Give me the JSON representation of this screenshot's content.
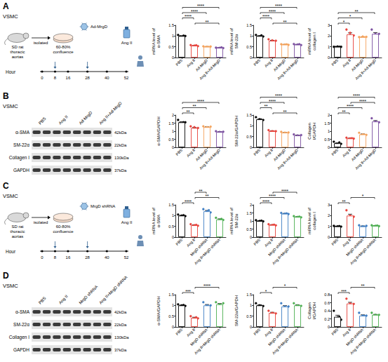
{
  "panels": [
    {
      "letter": "A",
      "cell": "VSMC",
      "schematic": {
        "source": "SD rat thoracic aortas",
        "step": "isolated",
        "confluence": "60-80% confluence",
        "treatment": "Ad-MrgD",
        "stimulus": "Ang II",
        "time_label": "Hour",
        "hours": [
          0,
          8,
          16,
          28,
          40,
          52
        ]
      }
    },
    {
      "letter": "B",
      "cell": "VSMC",
      "blot": {
        "columns": [
          "PBS",
          "Ang II",
          "Ad-MrgD",
          "Ang II+Ad-MrgD"
        ],
        "rows": [
          {
            "label": "α-SMA",
            "size": "42kDa"
          },
          {
            "label": "SM-22α",
            "size": "22kDa"
          },
          {
            "label": "Collagen I",
            "size": "130kDa"
          },
          {
            "label": "GAPDH",
            "size": "37kDa"
          }
        ]
      }
    },
    {
      "letter": "C",
      "cell": "VSMC",
      "schematic": {
        "source": "SD rat thoracic aortas",
        "step": "isolated",
        "confluence": "60-80% confluence",
        "treatment": "MrgD shRNA",
        "stimulus": "Ang II",
        "time_label": "Hour",
        "hours": [
          0,
          8,
          16,
          28,
          40,
          52
        ]
      }
    },
    {
      "letter": "D",
      "cell": "VSMC",
      "blot": {
        "columns": [
          "PBS",
          "Ang II",
          "MrgD shRNA",
          "Ang II+MrgD shRNA"
        ],
        "rows": [
          {
            "label": "α-SMA",
            "size": "42kDa"
          },
          {
            "label": "SM-22α",
            "size": "22kDa"
          },
          {
            "label": "Collagen I",
            "size": "130kDa"
          },
          {
            "label": "GAPDH",
            "size": "37kDa"
          }
        ]
      }
    }
  ],
  "chart_data": [
    {
      "type": "bar",
      "ylabel": "mRNA level of α-SMA",
      "categories": [
        "PBS",
        "Ang II",
        "Ad-MrgD",
        "Ang II+Ad-MrgD"
      ],
      "colors": [
        "#000000",
        "#e8413a",
        "#f5a35c",
        "#7b4fa0"
      ],
      "values": [
        1.0,
        0.55,
        0.5,
        0.45
      ],
      "errors": [
        0.02,
        0.01,
        0.01,
        0.01
      ],
      "points": [
        [
          1.05,
          0.98,
          0.95,
          1.02,
          1.0
        ],
        [
          0.58,
          0.52,
          0.55,
          0.57,
          0.53
        ],
        [
          0.52,
          0.48,
          0.5,
          0.49,
          0.51
        ],
        [
          0.46,
          0.43,
          0.45,
          0.47,
          0.44
        ]
      ],
      "significance": [
        {
          "groups": [
            1,
            3
          ],
          "label": "**"
        },
        {
          "groups": [
            0,
            1
          ],
          "label": "****"
        },
        {
          "groups": [
            0,
            2
          ],
          "label": "****"
        },
        {
          "groups": [
            0,
            3
          ],
          "label": "****"
        }
      ],
      "ylim": [
        0,
        1.5
      ],
      "yticks": [
        0,
        0.5,
        1,
        1.5
      ],
      "grid": false
    },
    {
      "type": "bar",
      "ylabel": "mRNA level of SM-22α",
      "categories": [
        "PBS",
        "Ang II",
        "Ad-MrgD",
        "Ang II+Ad-MrgD"
      ],
      "colors": [
        "#000000",
        "#e8413a",
        "#f5a35c",
        "#7b4fa0"
      ],
      "values": [
        1.0,
        0.78,
        0.6,
        0.6
      ],
      "errors": [
        0.02,
        0.02,
        0.01,
        0.01
      ],
      "points": [
        [
          1.05,
          0.96,
          0.98,
          1.03,
          0.98
        ],
        [
          0.85,
          0.72,
          0.8,
          0.75,
          0.78
        ],
        [
          0.62,
          0.58,
          0.6,
          0.61,
          0.59
        ],
        [
          0.63,
          0.57,
          0.6,
          0.62,
          0.58
        ]
      ],
      "significance": [
        {
          "groups": [
            1,
            3
          ],
          "label": "**"
        },
        {
          "groups": [
            0,
            1
          ],
          "label": "****"
        },
        {
          "groups": [
            0,
            2
          ],
          "label": "****"
        },
        {
          "groups": [
            0,
            3
          ],
          "label": "****"
        }
      ],
      "ylim": [
        0,
        1.5
      ],
      "yticks": [
        0,
        0.5,
        1,
        1.5
      ],
      "grid": false
    },
    {
      "type": "bar",
      "ylabel": "mRNA level of collagen I",
      "categories": [
        "PBS",
        "Ang II",
        "Ad-MrgD",
        "Ang II+Ad-MrgD"
      ],
      "colors": [
        "#000000",
        "#e8413a",
        "#f5a35c",
        "#7b4fa0"
      ],
      "values": [
        1.0,
        2.15,
        1.9,
        2.2
      ],
      "errors": [
        0.01,
        0.14,
        0.02,
        0.12
      ],
      "points": [
        [
          1.0,
          0.98,
          1.02,
          1.0,
          1.0
        ],
        [
          2.6,
          1.8,
          2.3,
          2.0,
          2.05
        ],
        [
          1.9,
          1.85,
          1.95,
          1.88,
          1.92
        ],
        [
          2.6,
          1.9,
          2.2,
          2.1,
          2.2
        ]
      ],
      "significance": [
        {
          "groups": [
            0,
            1
          ],
          "label": "*"
        },
        {
          "groups": [
            0,
            2
          ],
          "label": "*"
        },
        {
          "groups": [
            0,
            3
          ],
          "label": "**"
        }
      ],
      "ylim": [
        0,
        3
      ],
      "yticks": [
        0,
        1,
        2,
        3
      ],
      "grid": false
    },
    {
      "type": "bar",
      "ylabel": "α-SMA/GAPDH",
      "categories": [
        "PBS",
        "Ang II",
        "Ad-MrgD",
        "Ang II+Ad-MrgD"
      ],
      "colors": [
        "#000000",
        "#e8413a",
        "#f5a35c",
        "#7b4fa0"
      ],
      "values": [
        1.55,
        1.2,
        1.25,
        0.95
      ],
      "errors": [
        0.04,
        0.03,
        0.02,
        0.02
      ],
      "points": [
        [
          1.7,
          1.5,
          1.45,
          1.55,
          1.55
        ],
        [
          1.3,
          1.1,
          1.25,
          1.15,
          1.2
        ],
        [
          1.3,
          1.2,
          1.25,
          1.22,
          1.28
        ],
        [
          1.0,
          0.9,
          0.95,
          0.93,
          0.97
        ]
      ],
      "significance": [
        {
          "groups": [
            0,
            1
          ],
          "label": "**"
        },
        {
          "groups": [
            0,
            2
          ],
          "label": "**"
        },
        {
          "groups": [
            0,
            3
          ],
          "label": "****"
        }
      ],
      "ylim": [
        0,
        2
      ],
      "yticks": [
        0,
        0.5,
        1,
        1.5,
        2
      ],
      "grid": false
    },
    {
      "type": "bar",
      "ylabel": "SM-22α/GAPDH",
      "categories": [
        "PBS",
        "Ang II",
        "Ad-MrgD",
        "Ang II+Ad-MrgD"
      ],
      "colors": [
        "#000000",
        "#e8413a",
        "#f5a35c",
        "#7b4fa0"
      ],
      "values": [
        1.3,
        0.75,
        0.68,
        0.55
      ],
      "errors": [
        0.03,
        0.02,
        0.01,
        0.02
      ],
      "points": [
        [
          1.4,
          1.25,
          1.3,
          1.28,
          1.27
        ],
        [
          0.8,
          0.72,
          0.75,
          0.73,
          0.75
        ],
        [
          0.72,
          0.65,
          0.68,
          0.66,
          0.69
        ],
        [
          0.6,
          0.5,
          0.55,
          0.53,
          0.57
        ]
      ],
      "significance": [
        {
          "groups": [
            1,
            3
          ],
          "label": "**"
        },
        {
          "groups": [
            0,
            1
          ],
          "label": "**"
        },
        {
          "groups": [
            0,
            2
          ],
          "label": "****"
        },
        {
          "groups": [
            0,
            3
          ],
          "label": "****"
        }
      ],
      "ylim": [
        0,
        1.5
      ],
      "yticks": [
        0,
        0.5,
        1,
        1.5
      ],
      "grid": false
    },
    {
      "type": "bar",
      "ylabel": "Collagen I/GAPDH",
      "categories": [
        "PBS",
        "Ang II",
        "Ad-MrgD",
        "Ang II+Ad-MrgD"
      ],
      "colors": [
        "#000000",
        "#e8413a",
        "#f5a35c",
        "#7b4fa0"
      ],
      "values": [
        0.25,
        0.55,
        0.8,
        1.6
      ],
      "errors": [
        0.03,
        0.02,
        0.03,
        0.06
      ],
      "points": [
        [
          0.35,
          0.2,
          0.18,
          0.3,
          0.22
        ],
        [
          0.6,
          0.5,
          0.55,
          0.56,
          0.54
        ],
        [
          0.9,
          0.75,
          0.8,
          0.78,
          0.77
        ],
        [
          1.8,
          1.5,
          1.6,
          1.55,
          1.55
        ]
      ],
      "significance": [
        {
          "groups": [
            0,
            1
          ],
          "label": "**"
        },
        {
          "groups": [
            0,
            2
          ],
          "label": "****"
        },
        {
          "groups": [
            1,
            3
          ],
          "label": "****"
        },
        {
          "groups": [
            0,
            3
          ],
          "label": "****"
        }
      ],
      "ylim": [
        0,
        2
      ],
      "yticks": [
        0,
        0.5,
        1,
        1.5,
        2
      ],
      "grid": false
    },
    {
      "type": "bar",
      "ylabel": "mRNA level of α-SMA",
      "categories": [
        "PBS",
        "Ang II",
        "MrgD shRNA",
        "Ang II+MrgD shRNA"
      ],
      "colors": [
        "#000000",
        "#e8413a",
        "#3f7fc4",
        "#4caf50"
      ],
      "values": [
        1.0,
        0.55,
        1.2,
        0.82
      ],
      "errors": [
        0.02,
        0.02,
        0.04,
        0.03
      ],
      "points": [
        [
          1.05,
          0.95,
          1.0,
          1.02,
          0.98
        ],
        [
          0.6,
          0.5,
          0.55,
          0.57,
          0.53
        ],
        [
          1.3,
          1.1,
          1.2,
          1.25,
          1.15
        ],
        [
          0.9,
          0.75,
          0.8,
          0.85,
          0.8
        ]
      ],
      "significance": [
        {
          "groups": [
            0,
            1
          ],
          "label": "****"
        },
        {
          "groups": [
            1,
            3
          ],
          "label": "**"
        },
        {
          "groups": [
            1,
            2
          ],
          "label": "**"
        }
      ],
      "ylim": [
        0,
        1.5
      ],
      "yticks": [
        0,
        0.5,
        1,
        1.5
      ],
      "grid": false
    },
    {
      "type": "bar",
      "ylabel": "mRNA level of SM-22α",
      "categories": [
        "PBS",
        "Ang II",
        "MrgD shRNA",
        "Ang II+MrgD shRNA"
      ],
      "colors": [
        "#000000",
        "#e8413a",
        "#3f7fc4",
        "#4caf50"
      ],
      "values": [
        1.0,
        0.75,
        1.45,
        1.25
      ],
      "errors": [
        0.02,
        0.02,
        0.02,
        0.02
      ],
      "points": [
        [
          1.05,
          0.95,
          1.0,
          1.02,
          0.98
        ],
        [
          0.8,
          0.7,
          0.75,
          0.77,
          0.73
        ],
        [
          1.5,
          1.4,
          1.45,
          1.47,
          1.43
        ],
        [
          1.3,
          1.2,
          1.25,
          1.27,
          1.23
        ]
      ],
      "significance": [
        {
          "groups": [
            0,
            1
          ],
          "label": "****"
        },
        {
          "groups": [
            0,
            2
          ],
          "label": "****"
        },
        {
          "groups": [
            1,
            3
          ],
          "label": "****"
        }
      ],
      "ylim": [
        0,
        2
      ],
      "yticks": [
        0,
        0.5,
        1,
        1.5,
        2
      ],
      "grid": false
    },
    {
      "type": "bar",
      "ylabel": "mRNA level of collagen I",
      "categories": [
        "PBS",
        "Ang II",
        "MrgD shRNA",
        "Ang II+MrgD shRNA"
      ],
      "colors": [
        "#000000",
        "#e8413a",
        "#3f7fc4",
        "#4caf50"
      ],
      "values": [
        1.0,
        2.0,
        1.0,
        1.05
      ],
      "errors": [
        0.02,
        0.13,
        0.04,
        0.02
      ],
      "points": [
        [
          1.05,
          0.95,
          1.0,
          1.02,
          0.98
        ],
        [
          2.5,
          1.7,
          2.0,
          1.9,
          1.9
        ],
        [
          1.1,
          0.9,
          1.0,
          0.95,
          1.05
        ],
        [
          1.1,
          1.0,
          1.05,
          1.08,
          1.02
        ]
      ],
      "significance": [
        {
          "groups": [
            0,
            1
          ],
          "label": "**"
        },
        {
          "groups": [
            1,
            3
          ],
          "label": "*"
        }
      ],
      "ylim": [
        0,
        3
      ],
      "yticks": [
        0,
        1,
        2,
        3
      ],
      "grid": false
    },
    {
      "type": "bar",
      "ylabel": "α-SMA/GAPDH",
      "categories": [
        "PBS",
        "Ang II",
        "MrgD shRNA",
        "Ang II+MrgD shRNA"
      ],
      "colors": [
        "#000000",
        "#e8413a",
        "#3f7fc4",
        "#4caf50"
      ],
      "values": [
        1.0,
        0.42,
        1.0,
        1.05
      ],
      "errors": [
        0.02,
        0.03,
        0.04,
        0.04
      ],
      "points": [
        [
          1.05,
          0.95,
          1.0,
          1.02,
          0.98
        ],
        [
          0.5,
          0.35,
          0.4,
          0.45,
          0.4
        ],
        [
          1.15,
          0.9,
          1.0,
          0.95,
          1.0
        ],
        [
          1.15,
          0.95,
          1.05,
          1.0,
          1.1
        ]
      ],
      "significance": [
        {
          "groups": [
            0,
            1
          ],
          "label": "***"
        },
        {
          "groups": [
            1,
            3
          ],
          "label": "****"
        }
      ],
      "ylim": [
        0,
        1.5
      ],
      "yticks": [
        0,
        0.5,
        1,
        1.5
      ],
      "grid": false
    },
    {
      "type": "bar",
      "ylabel": "SM-22α/GAPDH",
      "categories": [
        "PBS",
        "Ang II",
        "MrgD shRNA",
        "Ang II+MrgD shRNA"
      ],
      "colors": [
        "#000000",
        "#e8413a",
        "#3f7fc4",
        "#4caf50"
      ],
      "values": [
        1.0,
        0.65,
        0.95,
        1.0
      ],
      "errors": [
        0.03,
        0.03,
        0.04,
        0.03
      ],
      "points": [
        [
          1.1,
          0.95,
          1.0,
          0.98,
          0.97
        ],
        [
          0.75,
          0.6,
          0.65,
          0.62,
          0.63
        ],
        [
          1.1,
          0.85,
          0.95,
          0.9,
          0.95
        ],
        [
          1.1,
          0.95,
          1.0,
          0.97,
          0.98
        ]
      ],
      "significance": [
        {
          "groups": [
            0,
            1
          ],
          "label": "*"
        },
        {
          "groups": [
            1,
            3
          ],
          "label": "*"
        }
      ],
      "ylim": [
        0,
        1.5
      ],
      "yticks": [
        0,
        0.5,
        1,
        1.5
      ],
      "grid": false
    },
    {
      "type": "bar",
      "ylabel": "Collagen I/GAPDH",
      "categories": [
        "PBS",
        "Ang II",
        "MrgD shRNA",
        "Ang II+MrgD shRNA"
      ],
      "colors": [
        "#000000",
        "#e8413a",
        "#3f7fc4",
        "#4caf50"
      ],
      "values": [
        0.25,
        0.58,
        0.28,
        0.3
      ],
      "errors": [
        0.04,
        0.03,
        0.02,
        0.01
      ],
      "points": [
        [
          0.4,
          0.2,
          0.22,
          0.25,
          0.18
        ],
        [
          0.7,
          0.5,
          0.58,
          0.55,
          0.57
        ],
        [
          0.35,
          0.22,
          0.28,
          0.27,
          0.28
        ],
        [
          0.35,
          0.27,
          0.3,
          0.28,
          0.3
        ]
      ],
      "significance": [
        {
          "groups": [
            0,
            1
          ],
          "label": "***"
        },
        {
          "groups": [
            1,
            3
          ],
          "label": "**"
        }
      ],
      "ylim": [
        0,
        0.8
      ],
      "yticks": [
        0,
        0.2,
        0.4,
        0.6,
        0.8
      ],
      "grid": false
    }
  ]
}
